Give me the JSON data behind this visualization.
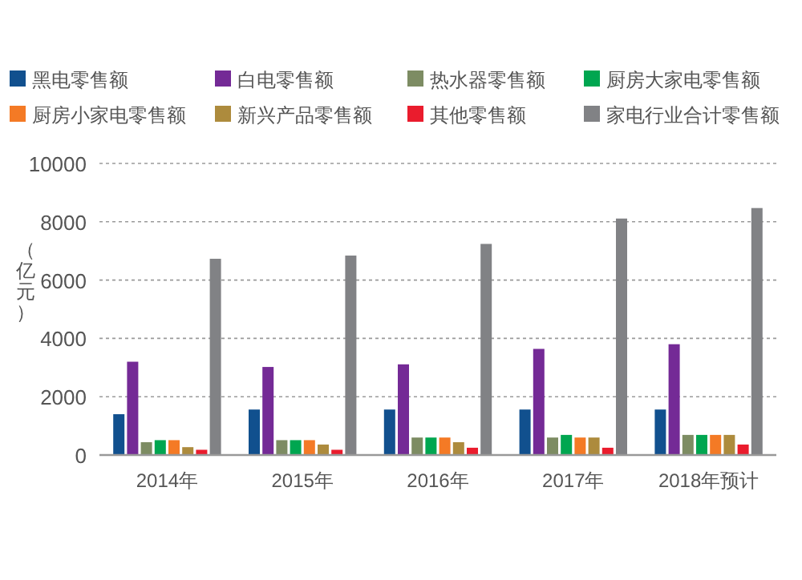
{
  "chart_data": {
    "type": "bar",
    "ylabel": "（亿元）",
    "categories": [
      "2014年",
      "2015年",
      "2016年",
      "2017年",
      "2018年预计"
    ],
    "series": [
      {
        "name": "黑电零售额",
        "color": "#11508e",
        "values": [
          1400,
          1560,
          1560,
          1560,
          1560
        ]
      },
      {
        "name": "白电零售额",
        "color": "#742a96",
        "values": [
          3200,
          3020,
          3110,
          3640,
          3800
        ]
      },
      {
        "name": "热水器零售额",
        "color": "#7d8c63",
        "values": [
          440,
          510,
          600,
          600,
          690
        ]
      },
      {
        "name": "厨房大家电零售额",
        "color": "#00a650",
        "values": [
          510,
          510,
          600,
          690,
          690
        ]
      },
      {
        "name": "厨房小家电零售额",
        "color": "#f47a25",
        "values": [
          510,
          510,
          600,
          600,
          690
        ]
      },
      {
        "name": "新兴产品零售额",
        "color": "#ad8b3d",
        "values": [
          270,
          360,
          440,
          600,
          690
        ]
      },
      {
        "name": "其他零售额",
        "color": "#ea1c2d",
        "values": [
          180,
          180,
          250,
          250,
          360
        ]
      },
      {
        "name": "家电行业合计零售额",
        "color": "#818285",
        "values": [
          6730,
          6840,
          7240,
          8110,
          8470
        ]
      }
    ],
    "ylim": [
      0,
      10000
    ],
    "yticks": [
      0,
      2000,
      4000,
      6000,
      8000,
      10000
    ],
    "grid": "y",
    "legend": "top"
  }
}
